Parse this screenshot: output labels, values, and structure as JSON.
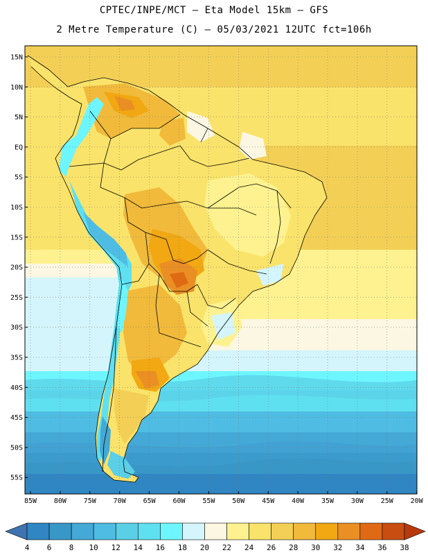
{
  "header": {
    "line1": "CPTEC/INPE/MCT –  Eta Model 15km – GFS",
    "line2": "2 Metre Temperature (C) – 05/03/2021 12UTC fct=106h"
  },
  "map": {
    "region": "South America",
    "lat_labels": [
      "15N",
      "10N",
      "5N",
      "EQ",
      "5S",
      "10S",
      "15S",
      "20S",
      "25S",
      "30S",
      "35S",
      "40S",
      "45S",
      "50S",
      "55S"
    ],
    "lon_labels": [
      "85W",
      "80W",
      "75W",
      "70W",
      "65W",
      "60W",
      "55W",
      "50W",
      "45W",
      "40W",
      "35W",
      "30W",
      "25W",
      "20W"
    ]
  },
  "colorbar": {
    "ticks": [
      "4",
      "6",
      "8",
      "10",
      "12",
      "14",
      "16",
      "18",
      "20",
      "22",
      "24",
      "26",
      "28",
      "30",
      "32",
      "34",
      "36",
      "38"
    ],
    "colors": [
      "#3f73b2",
      "#2f86c2",
      "#3997c8",
      "#44a9d6",
      "#4fbde3",
      "#5acfe6",
      "#5fe0f0",
      "#6df6ff",
      "#d4f5fb",
      "#fbf7e2",
      "#fdf28f",
      "#fae36a",
      "#f3d055",
      "#f1ba3b",
      "#f1a812",
      "#ea8f24",
      "#e06a13",
      "#c84d10",
      "#b83a0c"
    ]
  }
}
